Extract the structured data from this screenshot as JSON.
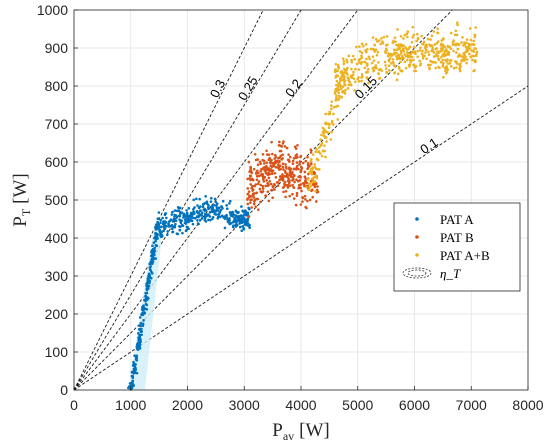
{
  "chart_data": {
    "type": "scatter",
    "xlabel": "P",
    "xlabel_sub": "av",
    "xlabel_unit": "[W]",
    "ylabel": "P",
    "ylabel_sub": "T",
    "ylabel_unit": "[W]",
    "xlim": [
      0,
      8000
    ],
    "ylim": [
      0,
      1000
    ],
    "xticks": [
      0,
      1000,
      2000,
      3000,
      4000,
      5000,
      6000,
      7000,
      8000
    ],
    "yticks": [
      0,
      100,
      200,
      300,
      400,
      500,
      600,
      700,
      800,
      900,
      1000
    ],
    "grid": true,
    "efficiency_lines": [
      {
        "label": "0.3",
        "slope": 0.3,
        "label_at": [
          2600,
          780
        ]
      },
      {
        "label": "0.25",
        "slope": 0.25,
        "label_at": [
          3130,
          780
        ]
      },
      {
        "label": "0.2",
        "slope": 0.2,
        "label_at": [
          3930,
          780
        ]
      },
      {
        "label": "0.15",
        "slope": 0.15,
        "label_at": [
          5200,
          780
        ]
      },
      {
        "label": "0.1",
        "slope": 0.1,
        "label_at": [
          6300,
          625
        ]
      }
    ],
    "series": [
      {
        "name": "PAT A",
        "color": "#0072BD",
        "clusters": [
          {
            "x": [
              1000,
              1480
            ],
            "y_func": "ramp",
            "y": [
              0,
              430
            ],
            "n": 220,
            "spread_x": 40,
            "spread_y": 12
          },
          {
            "x": [
              1450,
              3100
            ],
            "y_func": "plateau",
            "y": [
              440,
              470
            ],
            "n": 360,
            "spread_x": 0,
            "spread_y": 35
          }
        ]
      },
      {
        "name": "PAT B",
        "color": "#D95319",
        "clusters": [
          {
            "x": [
              3050,
              4300
            ],
            "y_func": "band",
            "y": [
              480,
              650
            ],
            "n": 380,
            "spread_x": 0,
            "spread_y": 0
          }
        ]
      },
      {
        "name": "PAT A+B",
        "color": "#EDB120",
        "clusters": [
          {
            "x": [
              4150,
              4800
            ],
            "y_func": "ramp",
            "y": [
              540,
              840
            ],
            "n": 120,
            "spread_x": 90,
            "spread_y": 25
          },
          {
            "x": [
              4600,
              7100
            ],
            "y_func": "cloud",
            "y": [
              780,
              980
            ],
            "n": 520,
            "spread_x": 0,
            "spread_y": 0
          }
        ]
      }
    ],
    "legend": {
      "position": "right-middle",
      "entries": [
        "PAT A",
        "PAT B",
        "PAT A+B",
        "η_T"
      ]
    }
  }
}
